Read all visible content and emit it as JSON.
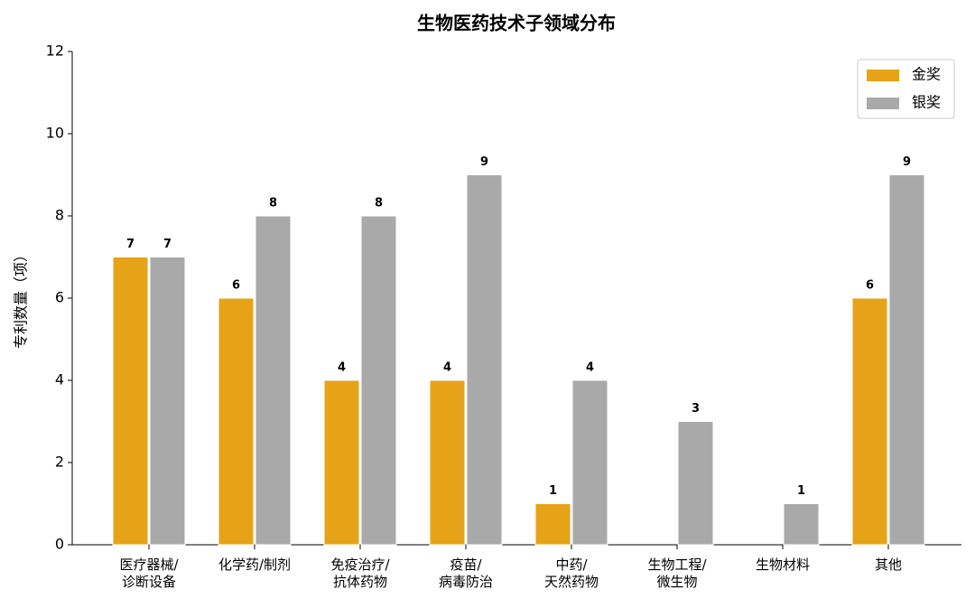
{
  "chart_data": {
    "type": "bar",
    "title": "生物医药技术子领域分布",
    "ylabel": "专利数量（项）",
    "categories": [
      "医疗器械/\n诊断设备",
      "化学药/制剂",
      "免疫治疗/\n抗体药物",
      "疫苗/\n病毒防治",
      "中药/\n天然药物",
      "生物工程/\n微生物",
      "生物材料",
      "其他"
    ],
    "series": [
      {
        "name": "金奖",
        "color": "#e6a317",
        "values": [
          7,
          6,
          4,
          4,
          1,
          0,
          0,
          6
        ]
      },
      {
        "name": "银奖",
        "color": "#a9a9a9",
        "values": [
          7,
          8,
          8,
          9,
          4,
          3,
          1,
          9
        ]
      }
    ],
    "ylim": [
      0,
      12
    ],
    "yticks": [
      0,
      2,
      4,
      6,
      8,
      10,
      12
    ],
    "legend": "upper right",
    "grid": false
  }
}
